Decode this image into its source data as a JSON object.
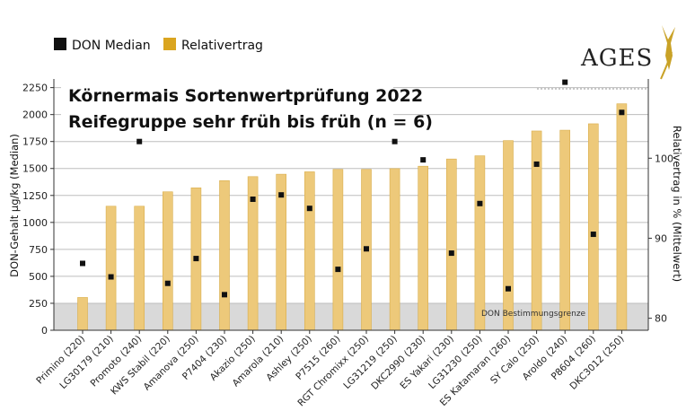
{
  "legend": {
    "median_label": "DON Median",
    "yield_label": "Relativertrag"
  },
  "logo": {
    "text": "AGES"
  },
  "colors": {
    "bar": "#EDC97A",
    "bar_edge": "#D9AE4C",
    "marker": "#111111",
    "band": "#D9D9D9",
    "grid": "#BDBDBD"
  },
  "chart_data": {
    "type": "bar",
    "title": "Körnermais Sortenwertprüfung 2022",
    "subtitle": "Reifegruppe sehr früh bis früh (n = 6)",
    "ylabel": "DON-Gehalt µg/kg (Median)",
    "y2label": "Relativertrag in % (Mittelwert)",
    "ylim": [
      0,
      2330
    ],
    "yticks": [
      "0",
      "250",
      "500",
      "750",
      "1000",
      "1250",
      "1500",
      "1750",
      "2000",
      "2250"
    ],
    "y2lim": [
      78.5,
      109.9
    ],
    "y2ticks": [
      "80",
      "90",
      "100"
    ],
    "threshold_label": "DON Bestimmungsgrenze",
    "threshold_value": 250,
    "categories": [
      "Primino (220)",
      "LG30179 (210)",
      "Promoto (240)",
      "KWS Stabil (220)",
      "Amanova (250)",
      "P7404 (230)",
      "Akazio (250)",
      "Amarola (210)",
      "Ashley (250)",
      "P7515 (260)",
      "RGT Chromixx (250)",
      "LG31219 (250)",
      "DKC2990 (230)",
      "ES Yakari (230)",
      "LG31230 (250)",
      "ES Katamaran (260)",
      "SY Calo (250)",
      "Aroldo (240)",
      "P8604 (260)",
      "DKC3012 (250)"
    ],
    "series": [
      {
        "name": "Relativertrag",
        "axis": "right",
        "values": [
          82.6,
          94.0,
          94.0,
          95.8,
          96.3,
          97.2,
          97.7,
          98.0,
          98.3,
          98.6,
          98.6,
          98.7,
          99.0,
          99.9,
          100.3,
          102.2,
          103.4,
          103.5,
          104.3,
          106.8
        ]
      },
      {
        "name": "DON Median",
        "axis": "left",
        "values": [
          620,
          495,
          1750,
          435,
          665,
          330,
          1215,
          1255,
          1130,
          565,
          755,
          1750,
          1580,
          715,
          1175,
          385,
          1540,
          2300,
          890,
          2020
        ]
      }
    ]
  }
}
